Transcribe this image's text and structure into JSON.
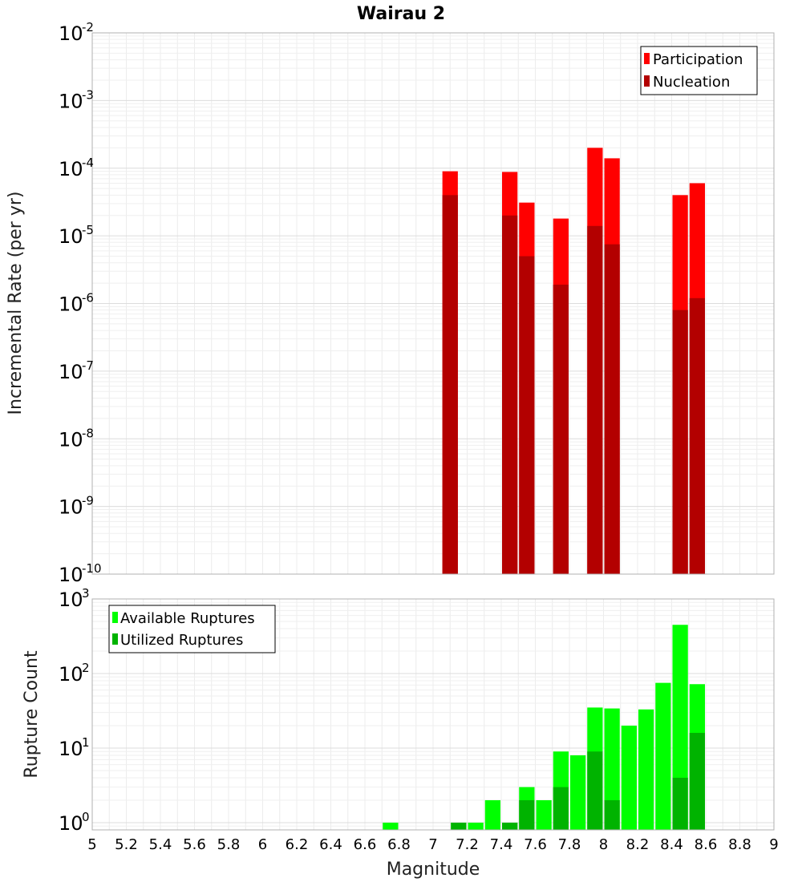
{
  "chart_data": [
    {
      "type": "bar",
      "title": "Wairau 2",
      "xlabel": "",
      "ylabel": "Incremental Rate (per yr)",
      "yscale": "log",
      "ylim": [
        1e-10,
        0.01
      ],
      "xlim": [
        5,
        9
      ],
      "grid": true,
      "legend": "top-right",
      "x": [
        7.1,
        7.45,
        7.55,
        7.75,
        7.95,
        8.05,
        8.45,
        8.55
      ],
      "series": [
        {
          "name": "Participation",
          "color": "#ff0000",
          "values": [
            9e-05,
            8.8e-05,
            3.1e-05,
            1.8e-05,
            0.0002,
            0.00014,
            4e-05,
            6e-05
          ]
        },
        {
          "name": "Nucleation",
          "color": "#b30000",
          "values": [
            4e-05,
            2e-05,
            5e-06,
            1.9e-06,
            1.4e-05,
            7.5e-06,
            8e-07,
            1.2e-06
          ]
        }
      ],
      "ytick_base": "10",
      "yticks": [
        {
          "value": 0.01,
          "exp": "-2"
        },
        {
          "value": 0.001,
          "exp": "-3"
        },
        {
          "value": 0.0001,
          "exp": "-4"
        },
        {
          "value": 1e-05,
          "exp": "-5"
        },
        {
          "value": 1e-06,
          "exp": "-6"
        },
        {
          "value": 1e-07,
          "exp": "-7"
        },
        {
          "value": 1e-08,
          "exp": "-8"
        },
        {
          "value": 1e-09,
          "exp": "-9"
        },
        {
          "value": 1e-10,
          "exp": "-10"
        }
      ]
    },
    {
      "type": "bar",
      "title": "",
      "xlabel": "Magnitude",
      "ylabel": "Rupture Count",
      "yscale": "log",
      "ylim": [
        0.8,
        1000
      ],
      "xlim": [
        5,
        9
      ],
      "grid": true,
      "legend": "top-left",
      "x": [
        6.75,
        7.15,
        7.25,
        7.35,
        7.45,
        7.55,
        7.65,
        7.75,
        7.85,
        7.95,
        8.05,
        8.15,
        8.25,
        8.35,
        8.45,
        8.55
      ],
      "series": [
        {
          "name": "Available Ruptures",
          "color": "#00ff00",
          "values": [
            1,
            1,
            1,
            2,
            1,
            3,
            2,
            9,
            8,
            35,
            34,
            20,
            33,
            75,
            450,
            72
          ]
        },
        {
          "name": "Utilized Ruptures",
          "color": "#00b300",
          "values": [
            0,
            1,
            0,
            0,
            1,
            2,
            0,
            3,
            0,
            9,
            2,
            0,
            0,
            0,
            4,
            16
          ]
        }
      ],
      "ytick_base": "10",
      "yticks": [
        {
          "value": 1000,
          "exp": "3"
        },
        {
          "value": 100,
          "exp": "2"
        },
        {
          "value": 10,
          "exp": "1"
        },
        {
          "value": 1,
          "exp": "0"
        }
      ],
      "xticks": [
        "5",
        "5.2",
        "5.4",
        "5.6",
        "5.8",
        "6",
        "6.2",
        "6.4",
        "6.6",
        "6.8",
        "7",
        "7.2",
        "7.4",
        "7.6",
        "7.8",
        "8",
        "8.2",
        "8.4",
        "8.6",
        "8.8",
        "9"
      ]
    }
  ]
}
